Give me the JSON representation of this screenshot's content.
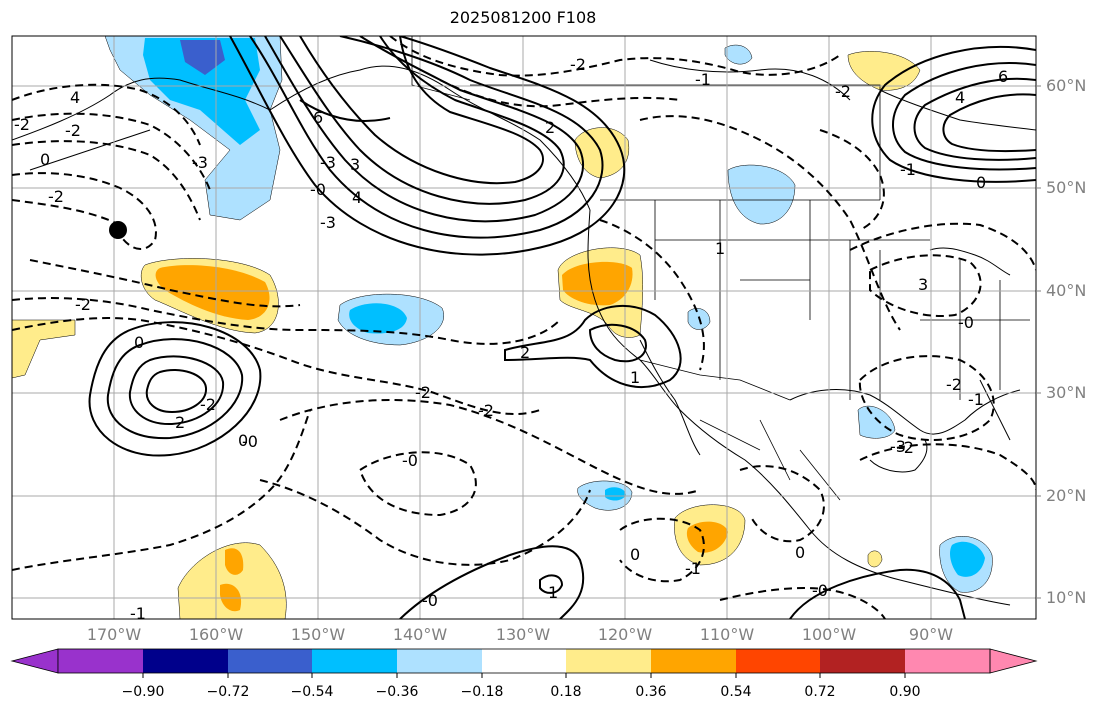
{
  "title": "2025081200 F108",
  "lat_labels": [
    "60°N",
    "50°N",
    "40°N",
    "30°N",
    "20°N",
    "10°N"
  ],
  "lon_labels": [
    "170°W",
    "160°W",
    "150°W",
    "140°W",
    "130°W",
    "120°W",
    "110°W",
    "100°W",
    "90°W"
  ],
  "colorbar": {
    "tick_labels": [
      "−0.90",
      "−0.72",
      "−0.54",
      "−0.36",
      "−0.18",
      "0.18",
      "0.36",
      "0.54",
      "0.72",
      "0.90"
    ],
    "colors": [
      "#9932cc",
      "#00008b",
      "#3a5fcd",
      "#00bfff",
      "#aee1ff",
      "#ffffff",
      "#ffec8b",
      "#ffa500",
      "#ff4500",
      "#b22222",
      "#ff88b0"
    ]
  },
  "contour_labels": [
    "4",
    "-2",
    "0",
    "-2",
    "-3",
    "-2",
    "-3",
    "6",
    "3",
    "4",
    "2",
    "-2",
    "-0",
    "-3",
    "2",
    "-2",
    "0",
    "1",
    "-2",
    "-2",
    "-0",
    "-1",
    "1",
    "2",
    "-0",
    "0",
    "0",
    "-0",
    "-1",
    "1",
    "-3",
    "-2",
    "-1",
    "-2",
    "3",
    "-2",
    "4",
    "6",
    "-2",
    "-1",
    "0",
    "-0",
    "0",
    "-0",
    "-1"
  ],
  "colors": {
    "land": "#000000",
    "grid": "#a9a9a9",
    "contour": "#000000",
    "label_gray": "#808080"
  }
}
